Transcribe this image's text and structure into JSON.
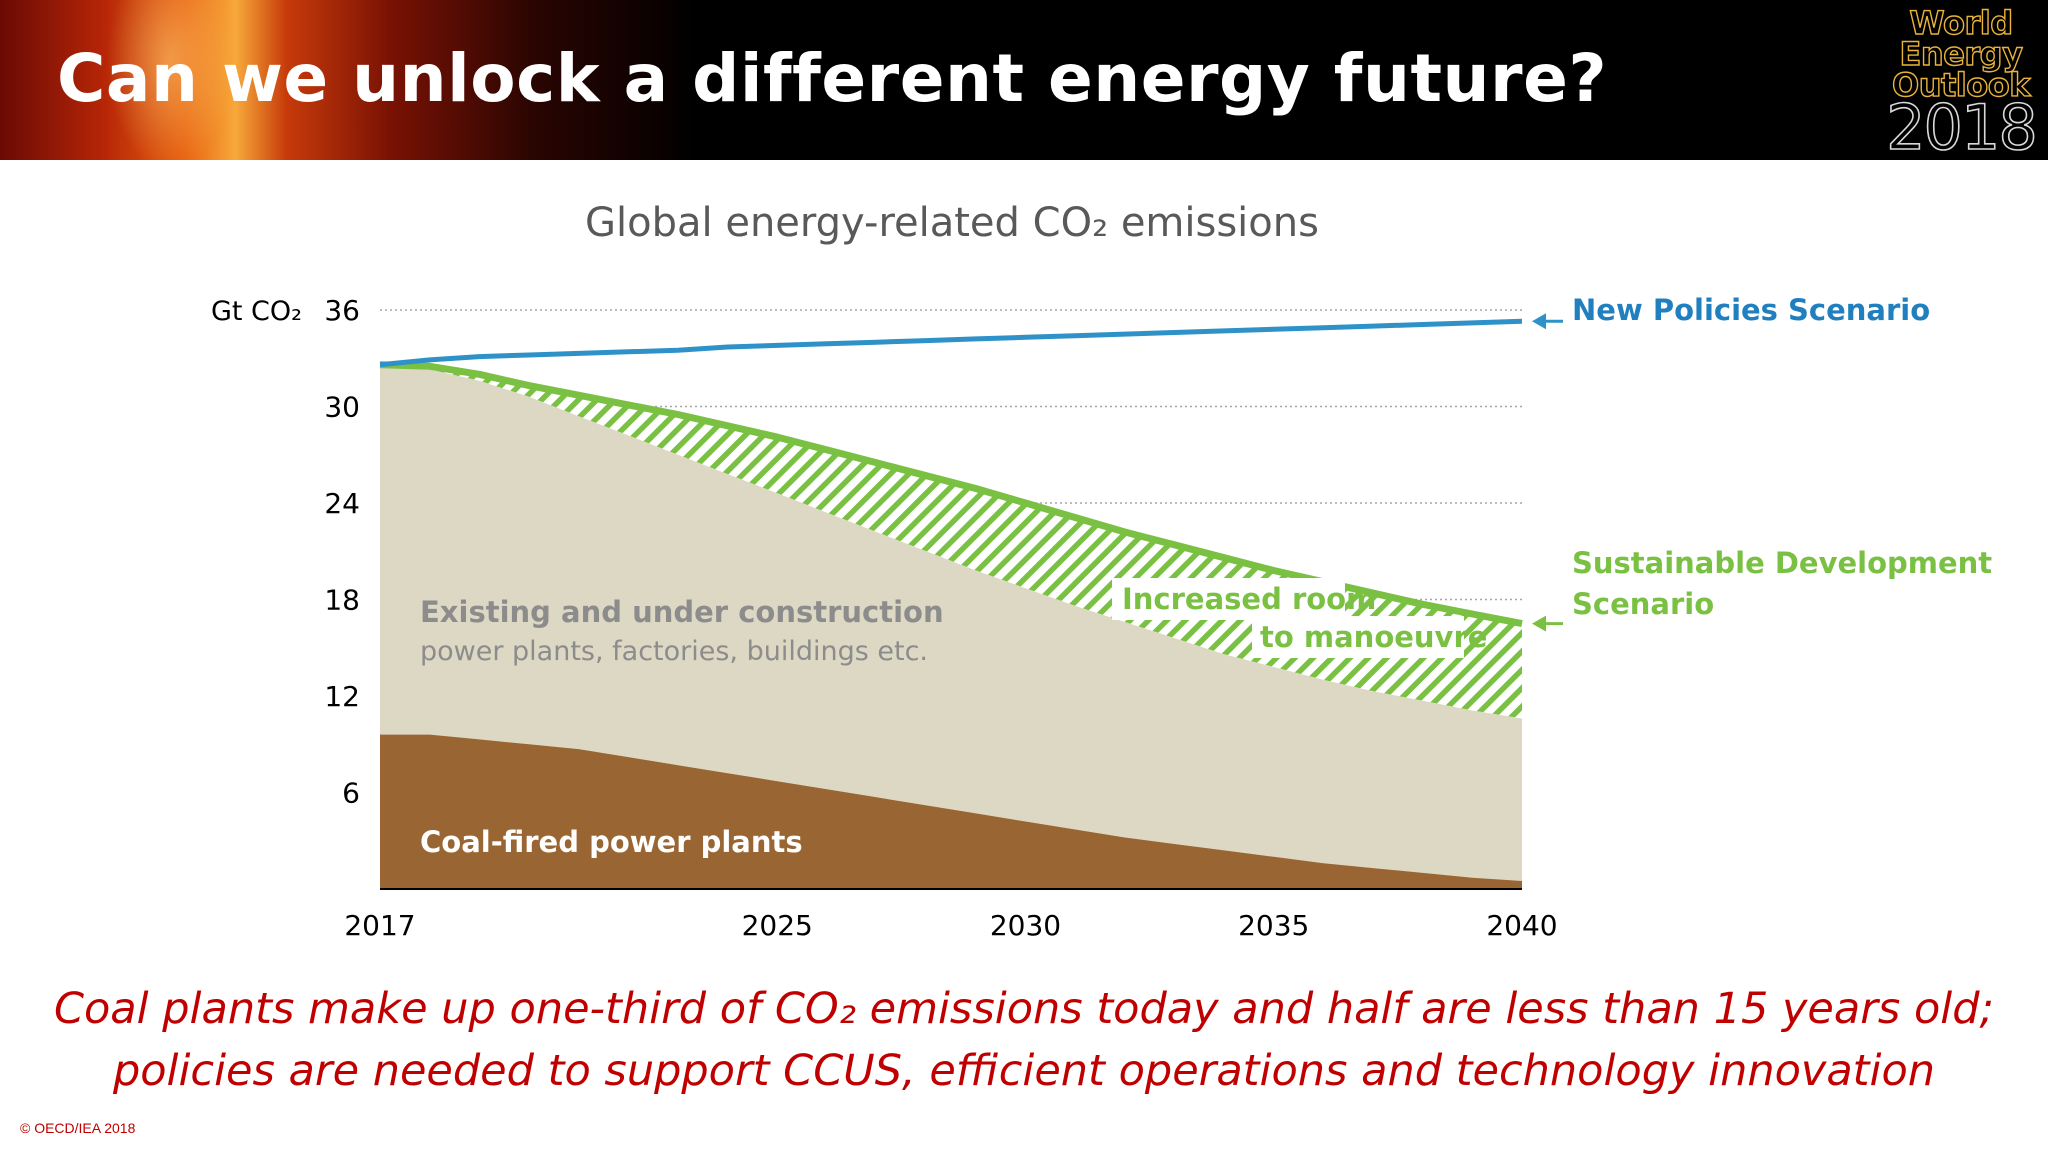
{
  "slide": {
    "title": "Can we unlock a different energy future?",
    "logo_lines": [
      "World",
      "Energy",
      "Outlook"
    ],
    "logo_year": "2018",
    "caption_line1": "Coal plants make up one-third of CO₂ emissions today and half are less than 15 years old;",
    "caption_line2": "policies are needed to support CCUS, efficient operations and technology innovation",
    "copyright": "© OECD/IEA 2018"
  },
  "chart_data": {
    "type": "area",
    "title": "Global energy-related CO₂ emissions",
    "ylabel": "Gt CO₂",
    "xlim": [
      2017,
      2040
    ],
    "ylim": [
      0,
      36
    ],
    "x_ticks": [
      2017,
      2025,
      2030,
      2035,
      2040
    ],
    "y_ticks": [
      6,
      12,
      18,
      24,
      30,
      36
    ],
    "grid": "horizontal dotted",
    "x": [
      2017,
      2018,
      2019,
      2020,
      2021,
      2022,
      2023,
      2024,
      2025,
      2026,
      2027,
      2028,
      2029,
      2030,
      2031,
      2032,
      2033,
      2034,
      2035,
      2036,
      2037,
      2038,
      2039,
      2040
    ],
    "series": [
      {
        "name": "New Policies Scenario",
        "kind": "line",
        "color": "#2e92c8",
        "values": [
          32.6,
          32.9,
          33.1,
          33.2,
          33.3,
          33.4,
          33.5,
          33.7,
          33.8,
          33.9,
          34.0,
          34.1,
          34.2,
          34.3,
          34.4,
          34.5,
          34.6,
          34.7,
          34.8,
          34.9,
          35.0,
          35.1,
          35.2,
          35.3
        ]
      },
      {
        "name": "Sustainable Development Scenario",
        "kind": "line",
        "color": "#7ac143",
        "values": [
          32.6,
          32.5,
          32.0,
          31.3,
          30.7,
          30.1,
          29.5,
          28.8,
          28.1,
          27.3,
          26.5,
          25.7,
          24.9,
          24.0,
          23.1,
          22.2,
          21.4,
          20.6,
          19.8,
          19.1,
          18.4,
          17.7,
          17.1,
          16.5
        ]
      },
      {
        "name": "Existing and under construction",
        "kind": "area",
        "color": "#ddd8c4",
        "values": [
          32.6,
          32.3,
          31.6,
          30.6,
          29.4,
          28.2,
          27.0,
          25.8,
          24.6,
          23.4,
          22.2,
          21.0,
          19.8,
          18.7,
          17.6,
          16.6,
          15.6,
          14.6,
          13.8,
          13.0,
          12.3,
          11.7,
          11.1,
          10.6
        ]
      },
      {
        "name": "Coal-fired power plants",
        "kind": "area",
        "color": "#996633",
        "values": [
          9.6,
          9.6,
          9.3,
          9.0,
          8.7,
          8.2,
          7.7,
          7.2,
          6.7,
          6.2,
          5.7,
          5.2,
          4.7,
          4.2,
          3.7,
          3.2,
          2.8,
          2.4,
          2.0,
          1.6,
          1.3,
          1.0,
          0.7,
          0.5
        ]
      }
    ],
    "labels": {
      "new_policies": "New Policies Scenario",
      "sds_line1": "Sustainable Development",
      "sds_line2": "Scenario",
      "existing_bold": "Existing and under construction",
      "existing_sub": "power plants, factories, buildings etc.",
      "coal": "Coal-fired power plants",
      "room_line1": "Increased room",
      "room_line2": "to manoeuvre"
    }
  }
}
